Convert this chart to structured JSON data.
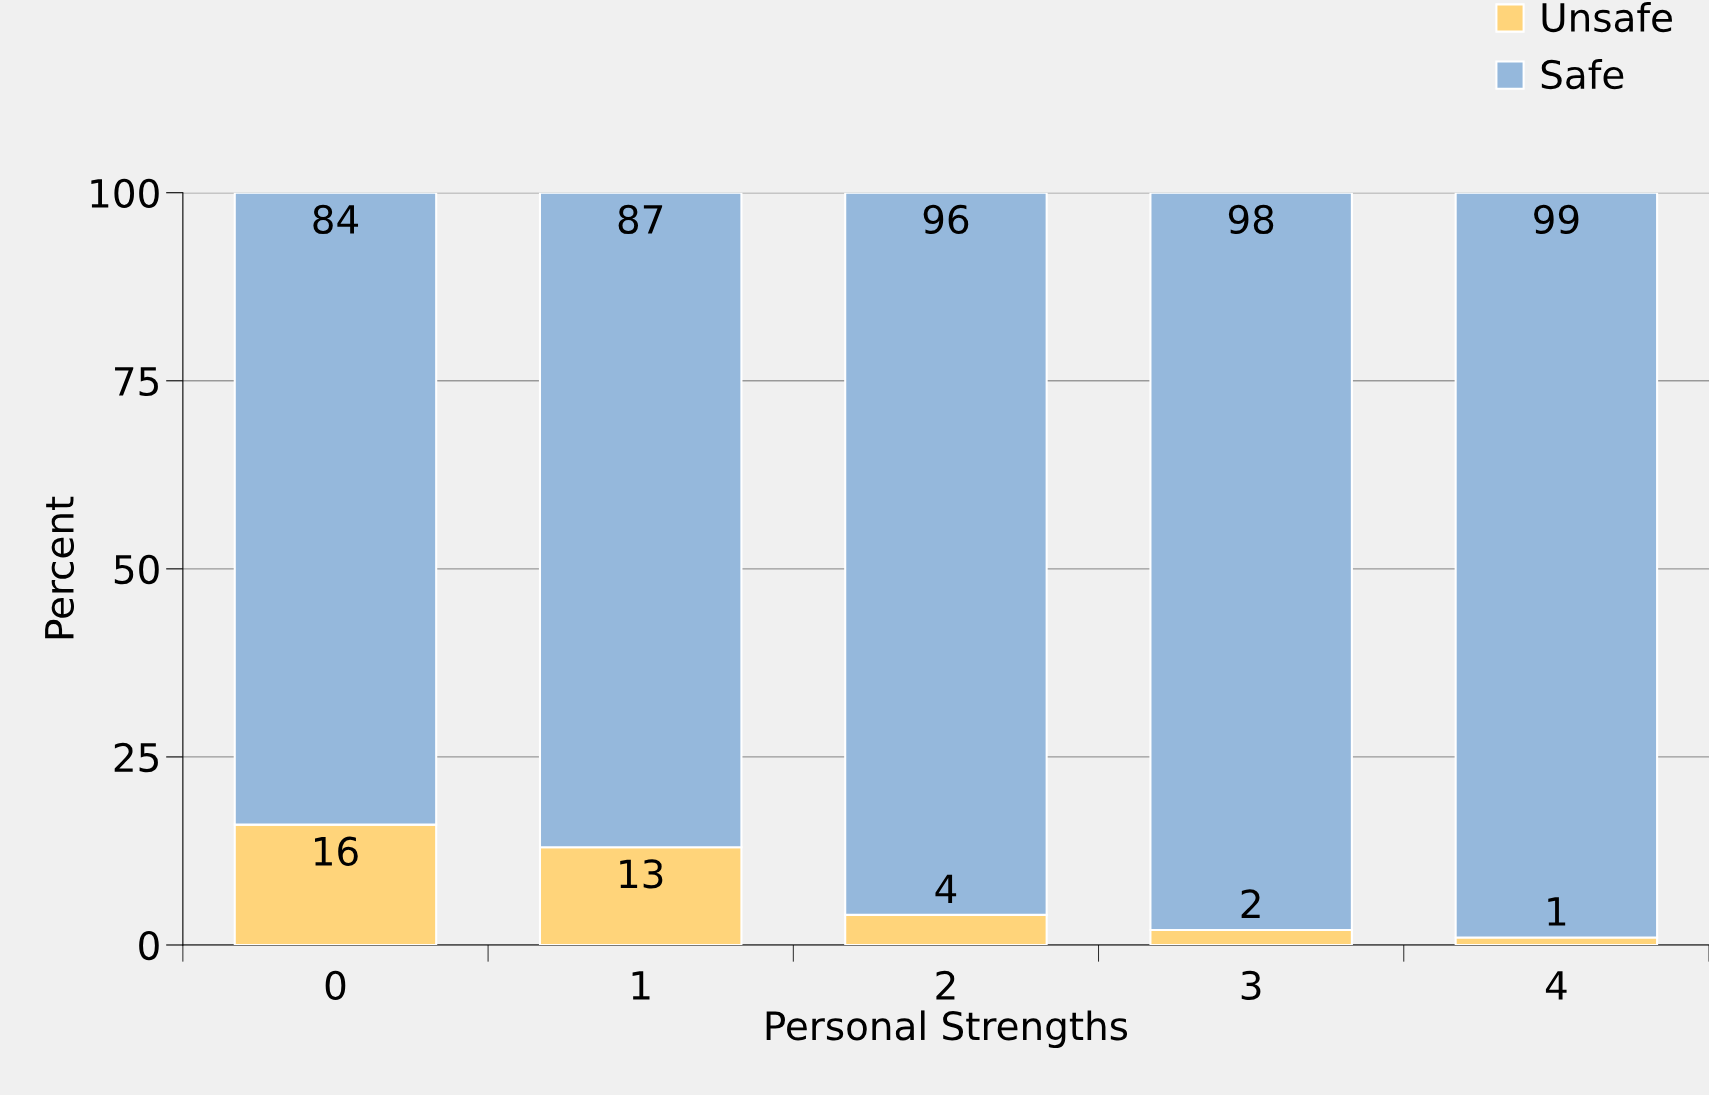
{
  "chart_data": {
    "type": "bar",
    "stacked": true,
    "xlabel": "Personal Strengths",
    "ylabel": "Percent",
    "categories": [
      "0",
      "1",
      "2",
      "3",
      "4"
    ],
    "series": [
      {
        "name": "Unsafe",
        "color": "#ffd47a",
        "values": [
          16,
          13,
          4,
          2,
          1
        ]
      },
      {
        "name": "Safe",
        "color": "#95b8dc",
        "values": [
          84,
          87,
          96,
          98,
          99
        ]
      }
    ],
    "ylim": [
      0,
      100
    ],
    "yticks": [
      0,
      25,
      50,
      75,
      100
    ],
    "grid": "y",
    "legend": "top right",
    "data_labels": true
  }
}
